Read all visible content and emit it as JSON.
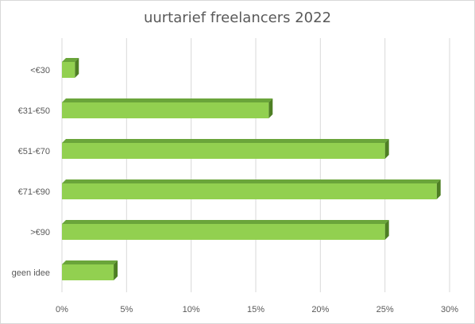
{
  "chart_data": {
    "type": "bar",
    "orientation": "horizontal",
    "style": "3d",
    "title": "uurtarief freelancers 2022",
    "categories": [
      "<€30",
      "€31-€50",
      "€51-€70",
      "€71-€90",
      ">€90",
      "geen idee"
    ],
    "values": [
      1,
      16,
      25,
      29,
      25,
      4
    ],
    "x_unit": "%",
    "xlim": [
      0,
      30
    ],
    "x_ticks": [
      0,
      5,
      10,
      15,
      20,
      25,
      30
    ],
    "x_tick_labels": [
      "0%",
      "5%",
      "10%",
      "15%",
      "20%",
      "25%",
      "30%"
    ],
    "grid": "vertical",
    "legend": "none",
    "colors": {
      "bar_front": "#92d050",
      "bar_top": "#6aa53a",
      "bar_side": "#4e7f24",
      "grid": "#d9d9d9",
      "text": "#595959"
    }
  }
}
